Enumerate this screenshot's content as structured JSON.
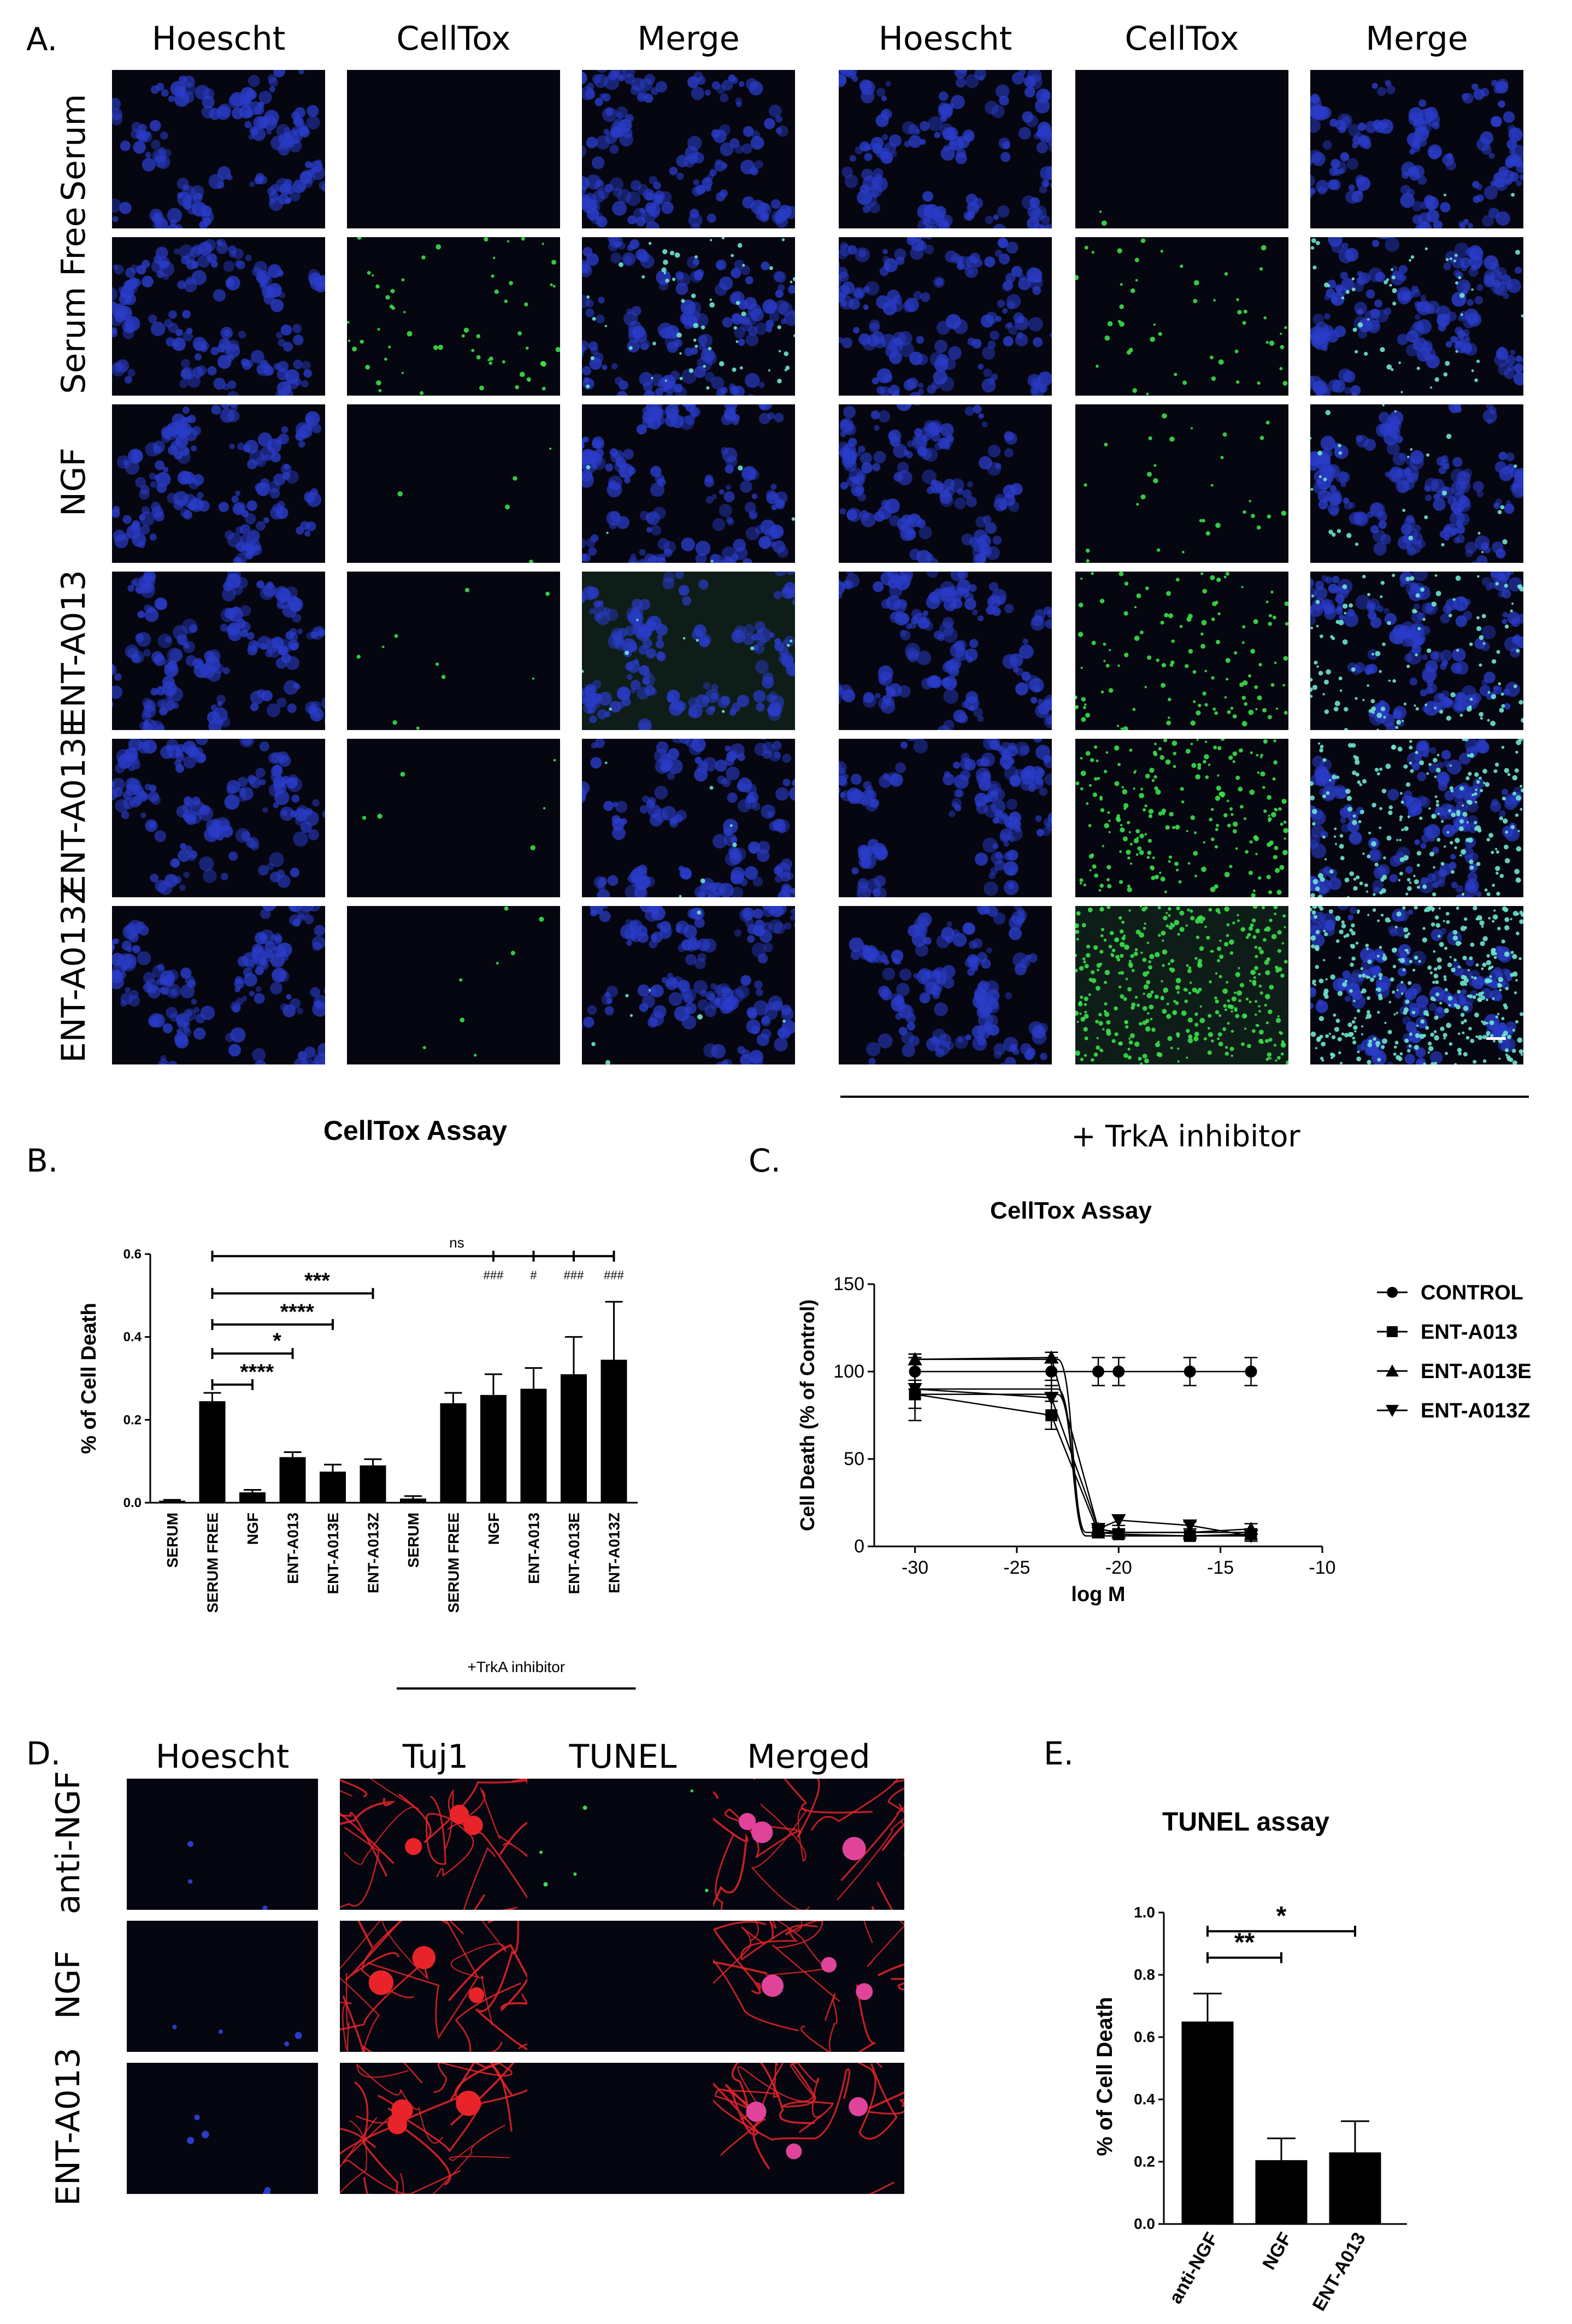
{
  "panel_a": {
    "label": "A.",
    "column_headers": [
      "Hoescht",
      "CellTox",
      "Merge",
      "Hoescht",
      "CellTox",
      "Merge"
    ],
    "row_labels": [
      "Serum",
      "Serum Free",
      "NGF",
      "ENT-A013",
      "ENT-A013E",
      "ENT-A013Z"
    ],
    "left_caption": "CellTox Assay",
    "right_caption": "+ TrkA inhibitor"
  },
  "panel_b": {
    "label": "B."
  },
  "panel_c": {
    "label": "C."
  },
  "panel_d": {
    "label": "D.",
    "column_headers": [
      "Hoescht",
      "Tuj1",
      "TUNEL",
      "Merged"
    ],
    "row_labels": [
      "anti-NGF",
      "NGF",
      "ENT-A013"
    ]
  },
  "panel_e": {
    "label": "E."
  },
  "colors": {
    "hoechst": "#2a3cc8",
    "celltox": "#39e04a",
    "tuj1": "#e8242a",
    "tile_bg": "#05060f"
  },
  "chart_data": [
    {
      "id": "B",
      "type": "bar",
      "ylabel": "% of Cell Death",
      "ylim": [
        0,
        0.6
      ],
      "yticks": [
        "0.0",
        "0.2",
        "0.4",
        "0.6"
      ],
      "categories": [
        "SERUM",
        "SERUM FREE",
        "NGF",
        "ENT-A013",
        "ENT-A013E",
        "ENT-A013Z",
        "SERUM",
        "SERUM FREE",
        "NGF",
        "ENT-A013",
        "ENT-A013E",
        "ENT-A013Z"
      ],
      "values": [
        0.005,
        0.245,
        0.025,
        0.11,
        0.075,
        0.09,
        0.01,
        0.24,
        0.26,
        0.275,
        0.31,
        0.345
      ],
      "errors": [
        0.002,
        0.02,
        0.006,
        0.012,
        0.017,
        0.015,
        0.006,
        0.025,
        0.05,
        0.05,
        0.09,
        0.14
      ],
      "group_label": "+TrkA inhibitor",
      "comparisons": [
        {
          "from": 1,
          "to": 2,
          "label": "****"
        },
        {
          "from": 1,
          "to": 3,
          "label": "*"
        },
        {
          "from": 1,
          "to": 4,
          "label": "****"
        },
        {
          "from": 1,
          "to": 5,
          "label": "***"
        },
        {
          "from": 1,
          "to": 11,
          "label": "ns"
        }
      ],
      "markers": [
        {
          "bar": 8,
          "label": "###"
        },
        {
          "bar": 9,
          "label": "#"
        },
        {
          "bar": 10,
          "label": "###"
        },
        {
          "bar": 11,
          "label": "###"
        }
      ]
    },
    {
      "id": "C",
      "type": "line",
      "title": "CellTox Assay",
      "xlabel": "log M",
      "ylabel": "Cell Death (% of Control)",
      "xlim": [
        -32,
        -10
      ],
      "ylim": [
        0,
        150
      ],
      "xticks": [
        "-30",
        "-25",
        "-20",
        "-15",
        "-10"
      ],
      "yticks": [
        "0",
        "50",
        "100",
        "150"
      ],
      "series": [
        {
          "name": "CONTROL",
          "marker": "circle",
          "x": [
            -30,
            -23.3,
            -21,
            -20,
            -16.5,
            -13.5
          ],
          "y": [
            100,
            100,
            100,
            100,
            100,
            100
          ],
          "err": [
            10,
            8,
            8,
            8,
            8,
            8
          ]
        },
        {
          "name": "ENT-A013",
          "marker": "square",
          "x": [
            -30,
            -23.3,
            -21,
            -20,
            -16.5,
            -13.5
          ],
          "y": [
            87,
            75,
            8,
            7,
            6,
            7
          ],
          "err": [
            8,
            8,
            3,
            2,
            2,
            3
          ]
        },
        {
          "name": "ENT-A013E",
          "marker": "triangle-up",
          "x": [
            -30,
            -23.3,
            -21,
            -20,
            -16.5,
            -13.5
          ],
          "y": [
            107,
            108,
            10,
            8,
            8,
            10
          ],
          "err": [
            3,
            3,
            2,
            2,
            2,
            3
          ]
        },
        {
          "name": "ENT-A013Z",
          "marker": "triangle-down",
          "x": [
            -30,
            -23.3,
            -21,
            -20,
            -16.5,
            -13.5
          ],
          "y": [
            90,
            85,
            10,
            15,
            12,
            6
          ],
          "err": [
            18,
            10,
            3,
            3,
            2,
            3
          ]
        }
      ]
    },
    {
      "id": "E",
      "type": "bar",
      "title": "TUNEL assay",
      "ylabel": "% of Cell Death",
      "ylim": [
        0,
        1.0
      ],
      "yticks": [
        "0.0",
        "0.2",
        "0.4",
        "0.6",
        "0.8",
        "1.0"
      ],
      "categories": [
        "anti-NGF",
        "NGF",
        "ENT-A013"
      ],
      "values": [
        0.65,
        0.205,
        0.23
      ],
      "errors": [
        0.09,
        0.07,
        0.1
      ],
      "comparisons": [
        {
          "from": 0,
          "to": 1,
          "label": "**"
        },
        {
          "from": 0,
          "to": 2,
          "label": "*"
        }
      ]
    }
  ]
}
